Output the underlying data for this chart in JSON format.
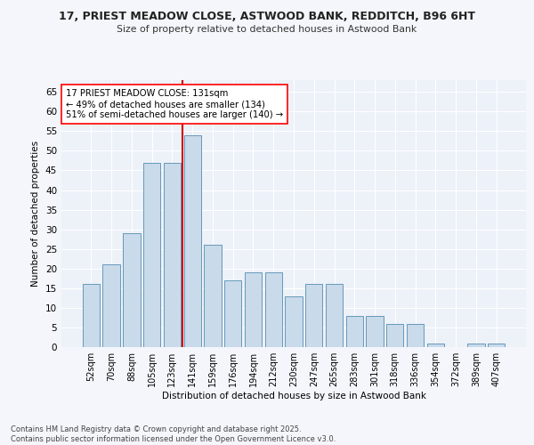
{
  "title1": "17, PRIEST MEADOW CLOSE, ASTWOOD BANK, REDDITCH, B96 6HT",
  "title2": "Size of property relative to detached houses in Astwood Bank",
  "xlabel": "Distribution of detached houses by size in Astwood Bank",
  "ylabel": "Number of detached properties",
  "categories": [
    "52sqm",
    "70sqm",
    "88sqm",
    "105sqm",
    "123sqm",
    "141sqm",
    "159sqm",
    "176sqm",
    "194sqm",
    "212sqm",
    "230sqm",
    "247sqm",
    "265sqm",
    "283sqm",
    "301sqm",
    "318sqm",
    "336sqm",
    "354sqm",
    "372sqm",
    "389sqm",
    "407sqm"
  ],
  "values": [
    16,
    21,
    29,
    47,
    47,
    54,
    26,
    17,
    19,
    19,
    13,
    16,
    16,
    8,
    8,
    6,
    6,
    1,
    0,
    1,
    1
  ],
  "bar_color": "#c9daea",
  "bar_edge_color": "#6699bb",
  "vline_x": 5,
  "vline_color": "#cc0000",
  "annotation_text": "17 PRIEST MEADOW CLOSE: 131sqm\n← 49% of detached houses are smaller (134)\n51% of semi-detached houses are larger (140) →",
  "ylim": [
    0,
    68
  ],
  "yticks": [
    0,
    5,
    10,
    15,
    20,
    25,
    30,
    35,
    40,
    45,
    50,
    55,
    60,
    65
  ],
  "bg_color": "#edf1f8",
  "grid_color": "#ffffff",
  "fig_bg_color": "#f4f6fb",
  "footer": "Contains HM Land Registry data © Crown copyright and database right 2025.\nContains public sector information licensed under the Open Government Licence v3.0."
}
